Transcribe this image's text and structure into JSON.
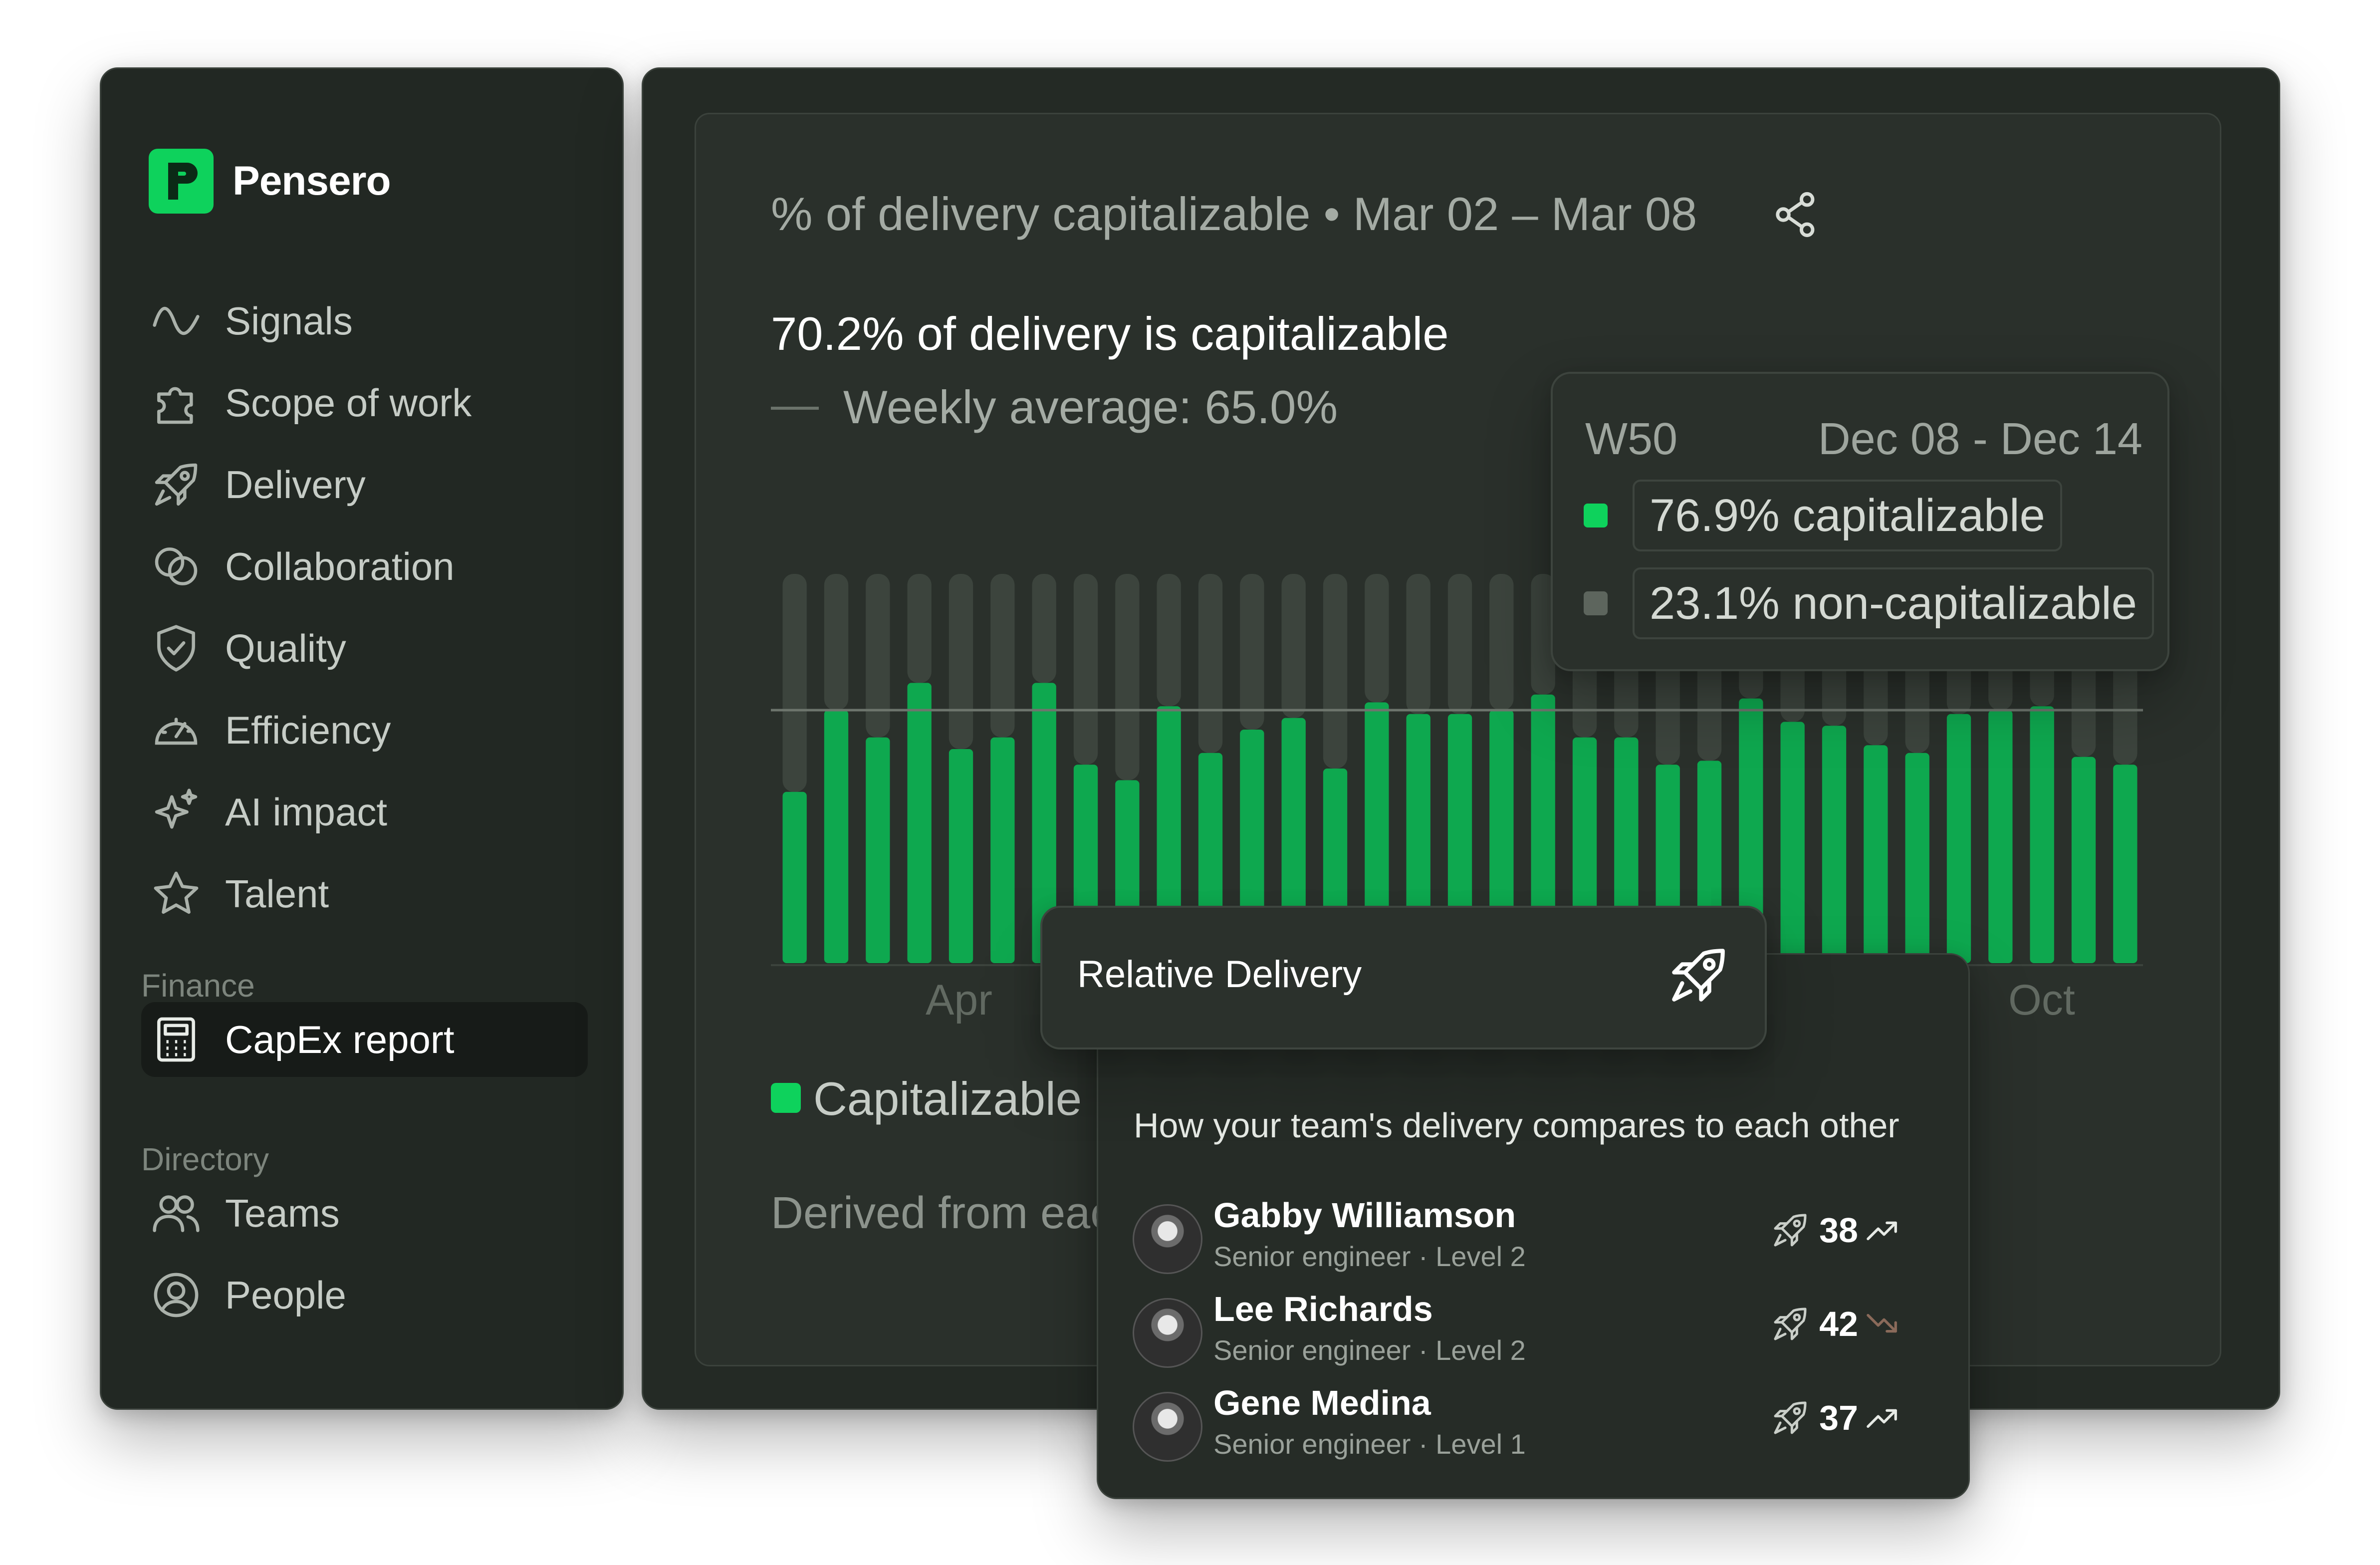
{
  "app": {
    "name": "Pensero",
    "logo_letter": "P",
    "brand_color": "#0ed25c"
  },
  "sidebar": {
    "items": [
      {
        "label": "Signals",
        "icon": "wave-icon"
      },
      {
        "label": "Scope of work",
        "icon": "puzzle-icon"
      },
      {
        "label": "Delivery",
        "icon": "rocket-icon"
      },
      {
        "label": "Collaboration",
        "icon": "circles-icon"
      },
      {
        "label": "Quality",
        "icon": "shield-check-icon"
      },
      {
        "label": "Efficiency",
        "icon": "gauge-icon"
      },
      {
        "label": "AI impact",
        "icon": "sparkle-icon"
      },
      {
        "label": "Talent",
        "icon": "star-icon"
      }
    ],
    "finance_section": "Finance",
    "finance_items": [
      {
        "label": "CapEx report",
        "icon": "calculator-icon",
        "active": true
      }
    ],
    "directory_section": "Directory",
    "directory_items": [
      {
        "label": "Teams",
        "icon": "users-icon"
      },
      {
        "label": "People",
        "icon": "user-circle-icon"
      }
    ]
  },
  "report": {
    "title": "% of delivery capitalizable • Mar 02 – Mar 08",
    "headline": "70.2% of delivery is capitalizable",
    "average_label": "Weekly average: 65.0%",
    "legend_capitalizable": "Capitalizable",
    "derived_text": "Derived from eac"
  },
  "chart_data": {
    "type": "bar",
    "stacked": true,
    "ylim": [
      0,
      100
    ],
    "average_line": 65.0,
    "x_tick_labels": [
      "Apr",
      "Oct"
    ],
    "series": [
      {
        "name": "Capitalizable",
        "color": "#0ea84f",
        "values": [
          44,
          65,
          58,
          72,
          55,
          58,
          72,
          51,
          47,
          66,
          54,
          60,
          63,
          50,
          67,
          64,
          64,
          65,
          69,
          58,
          58,
          51,
          52,
          68,
          62,
          61,
          56,
          54,
          64,
          65,
          66,
          53,
          51
        ]
      },
      {
        "name": "Non-capitalizable",
        "color": "#3c443d",
        "values": [
          56,
          35,
          42,
          28,
          45,
          42,
          28,
          49,
          53,
          34,
          46,
          40,
          37,
          50,
          33,
          36,
          36,
          35,
          31,
          42,
          42,
          49,
          48,
          32,
          38,
          39,
          44,
          46,
          36,
          35,
          34,
          47,
          49
        ]
      }
    ]
  },
  "tooltip": {
    "week": "W50",
    "range": "Dec 08 - Dec 14",
    "capitalizable": "76.9% capitalizable",
    "non_capitalizable": "23.1% non-capitalizable",
    "capitalizable_color": "#0ed25c",
    "non_capitalizable_color": "#5d655d"
  },
  "relative_delivery": {
    "title": "Relative Delivery",
    "subtitle": "How your team's delivery compares to each other",
    "people": [
      {
        "name": "Gabby Williamson",
        "role": "Senior engineer · Level 2",
        "score": "38",
        "trend": "up"
      },
      {
        "name": "Lee Richards",
        "role": "Senior engineer · Level 2",
        "score": "42",
        "trend": "down"
      },
      {
        "name": "Gene Medina",
        "role": "Senior engineer · Level 1",
        "score": "37",
        "trend": "up"
      }
    ]
  }
}
